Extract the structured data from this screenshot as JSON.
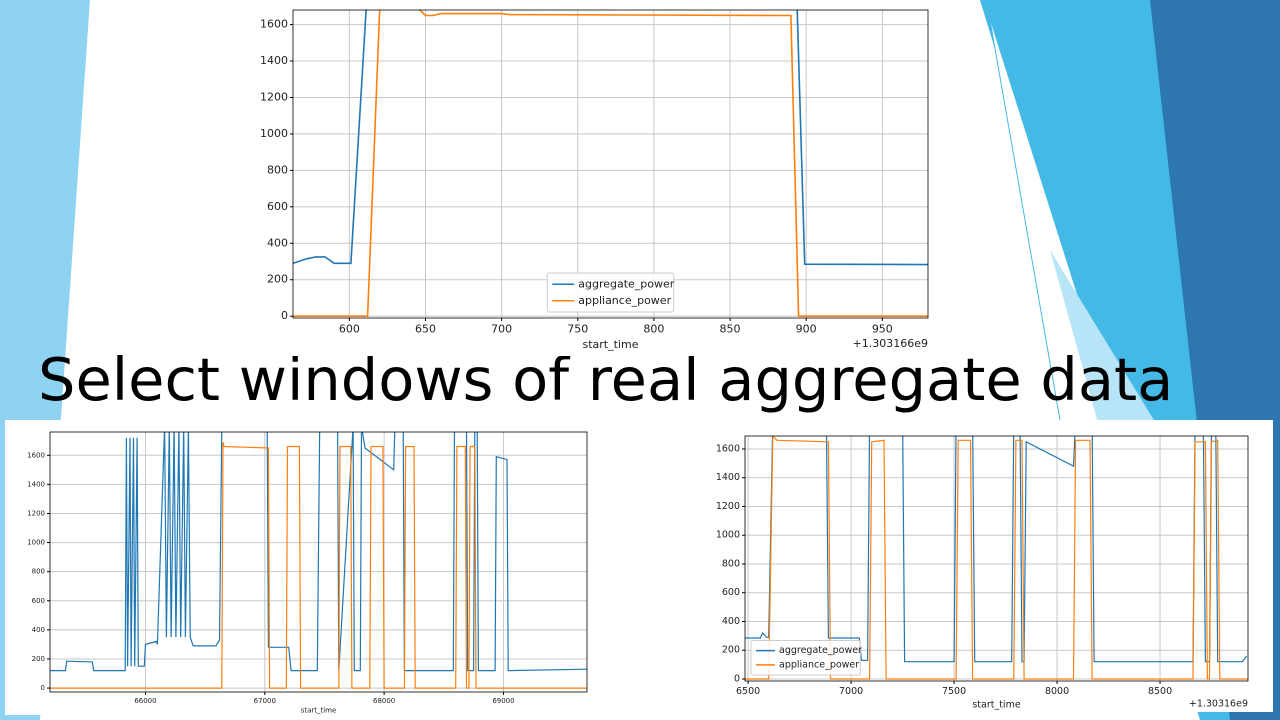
{
  "slide_title": "Select windows of real aggregate data",
  "chart_data": [
    {
      "type": "line",
      "xlabel": "start_time",
      "x_offset_label": "+1.303166e9",
      "xlim": [
        563,
        980
      ],
      "ylim": [
        -10,
        1680
      ],
      "xticks": [
        600,
        650,
        700,
        750,
        800,
        850,
        900,
        950
      ],
      "yticks": [
        0,
        200,
        400,
        600,
        800,
        1000,
        1200,
        1400,
        1600
      ],
      "grid": true,
      "legend": "lower center",
      "series": [
        {
          "name": "aggregate_power",
          "color": "#1f77b4",
          "x": [
            563,
            572,
            578,
            584,
            590,
            600,
            601,
            614,
            893,
            899,
            980
          ],
          "values": [
            290,
            315,
            325,
            325,
            290,
            290,
            290,
            2100,
            2000,
            285,
            283
          ]
        },
        {
          "name": "appliance_power",
          "color": "#ff7f0e",
          "x": [
            563,
            612,
            620,
            645,
            650,
            655,
            660,
            700,
            705,
            890,
            895,
            980
          ],
          "values": [
            0,
            0,
            1700,
            1690,
            1650,
            1650,
            1660,
            1660,
            1655,
            1650,
            0,
            0
          ]
        }
      ]
    },
    {
      "type": "line",
      "xlabel": "start_time",
      "xlim": [
        65200,
        69700
      ],
      "ylim": [
        -27,
        1760
      ],
      "xticks": [
        66000,
        67000,
        68000,
        69000
      ],
      "yticks": [
        0,
        200,
        400,
        600,
        800,
        1000,
        1200,
        1400,
        1600
      ],
      "grid": true,
      "series": [
        {
          "color": "#1f77b4",
          "x": [
            65200,
            65330,
            65340,
            65555,
            65565,
            65830,
            65840,
            65850,
            65870,
            65880,
            65900,
            65910,
            65930,
            65940,
            65990,
            66000,
            66090,
            66100,
            66160,
            66175,
            66200,
            66215,
            66240,
            66255,
            66280,
            66295,
            66320,
            66335,
            66360,
            66375,
            66400,
            66590,
            66620,
            66640,
            67020,
            67030,
            67200,
            67220,
            67440,
            67460,
            67610,
            67620,
            67740,
            67750,
            67800,
            67810,
            67840,
            68080,
            68090,
            68160,
            68170,
            68580,
            68590,
            68690,
            68700,
            68750,
            68760,
            68780,
            68790,
            68930,
            68940,
            69030,
            69040,
            69700
          ],
          "values": [
            120,
            120,
            185,
            180,
            120,
            120,
            1720,
            150,
            1720,
            150,
            1720,
            150,
            1720,
            150,
            150,
            300,
            320,
            300,
            1800,
            350,
            1800,
            350,
            1800,
            350,
            1800,
            350,
            1800,
            350,
            1800,
            350,
            290,
            290,
            330,
            1800,
            1800,
            280,
            280,
            120,
            120,
            1800,
            1800,
            120,
            1800,
            120,
            120,
            1800,
            1650,
            1500,
            1800,
            1800,
            120,
            120,
            1800,
            1800,
            120,
            120,
            1800,
            1800,
            120,
            120,
            1590,
            1570,
            120,
            130
          ]
        },
        {
          "color": "#ff7f0e",
          "x": [
            65200,
            66640,
            66650,
            66660,
            67030,
            67040,
            67180,
            67190,
            67290,
            67300,
            67620,
            67630,
            67720,
            67730,
            67880,
            67890,
            67990,
            68000,
            68170,
            68180,
            68250,
            68260,
            68600,
            68610,
            68680,
            68690,
            68710,
            68720,
            68760,
            68770,
            69700
          ],
          "values": [
            0,
            0,
            1690,
            1660,
            1650,
            0,
            0,
            1660,
            1660,
            0,
            0,
            1660,
            1660,
            0,
            0,
            1660,
            1660,
            0,
            0,
            1660,
            1660,
            0,
            0,
            1660,
            1660,
            0,
            0,
            1660,
            1660,
            0,
            0
          ]
        }
      ]
    },
    {
      "type": "line",
      "xlabel": "start_time",
      "x_offset_label": "+1.30316e9",
      "xlim": [
        6485,
        8927
      ],
      "ylim": [
        -14,
        1690
      ],
      "xticks": [
        6500,
        7000,
        7500,
        8000,
        8500
      ],
      "yticks": [
        0,
        200,
        400,
        600,
        800,
        1000,
        1200,
        1400,
        1600
      ],
      "grid": true,
      "legend": "lower left",
      "series": [
        {
          "name": "aggregate_power",
          "color": "#1f77b4",
          "x": [
            6485,
            6560,
            6570,
            6590,
            6600,
            6620,
            6880,
            6890,
            7040,
            7050,
            7080,
            7090,
            7250,
            7260,
            7500,
            7510,
            7590,
            7600,
            7780,
            7790,
            7820,
            7830,
            7840,
            7850,
            8080,
            8090,
            8170,
            8180,
            8660,
            8670,
            8710,
            8720,
            8740,
            8750,
            8770,
            8780,
            8900,
            8920
          ],
          "values": [
            285,
            285,
            320,
            290,
            290,
            1800,
            1800,
            285,
            285,
            130,
            130,
            1800,
            1800,
            120,
            120,
            1800,
            1800,
            120,
            120,
            1800,
            1800,
            120,
            120,
            1650,
            1480,
            1800,
            1800,
            120,
            120,
            1800,
            1800,
            120,
            120,
            1800,
            1800,
            120,
            120,
            160
          ]
        },
        {
          "name": "appliance_power",
          "color": "#ff7f0e",
          "x": [
            6485,
            6600,
            6620,
            6640,
            6890,
            6900,
            7090,
            7100,
            7160,
            7170,
            7510,
            7520,
            7580,
            7590,
            7790,
            7800,
            7830,
            7840,
            8080,
            8090,
            8160,
            8170,
            8660,
            8670,
            8720,
            8730,
            8740,
            8750,
            8780,
            8790,
            8927
          ],
          "values": [
            0,
            0,
            1690,
            1660,
            1650,
            0,
            0,
            1650,
            1660,
            0,
            0,
            1660,
            1660,
            0,
            0,
            1660,
            1660,
            0,
            0,
            1660,
            1660,
            0,
            0,
            1650,
            1650,
            0,
            0,
            1650,
            1660,
            0,
            0
          ]
        }
      ]
    }
  ]
}
